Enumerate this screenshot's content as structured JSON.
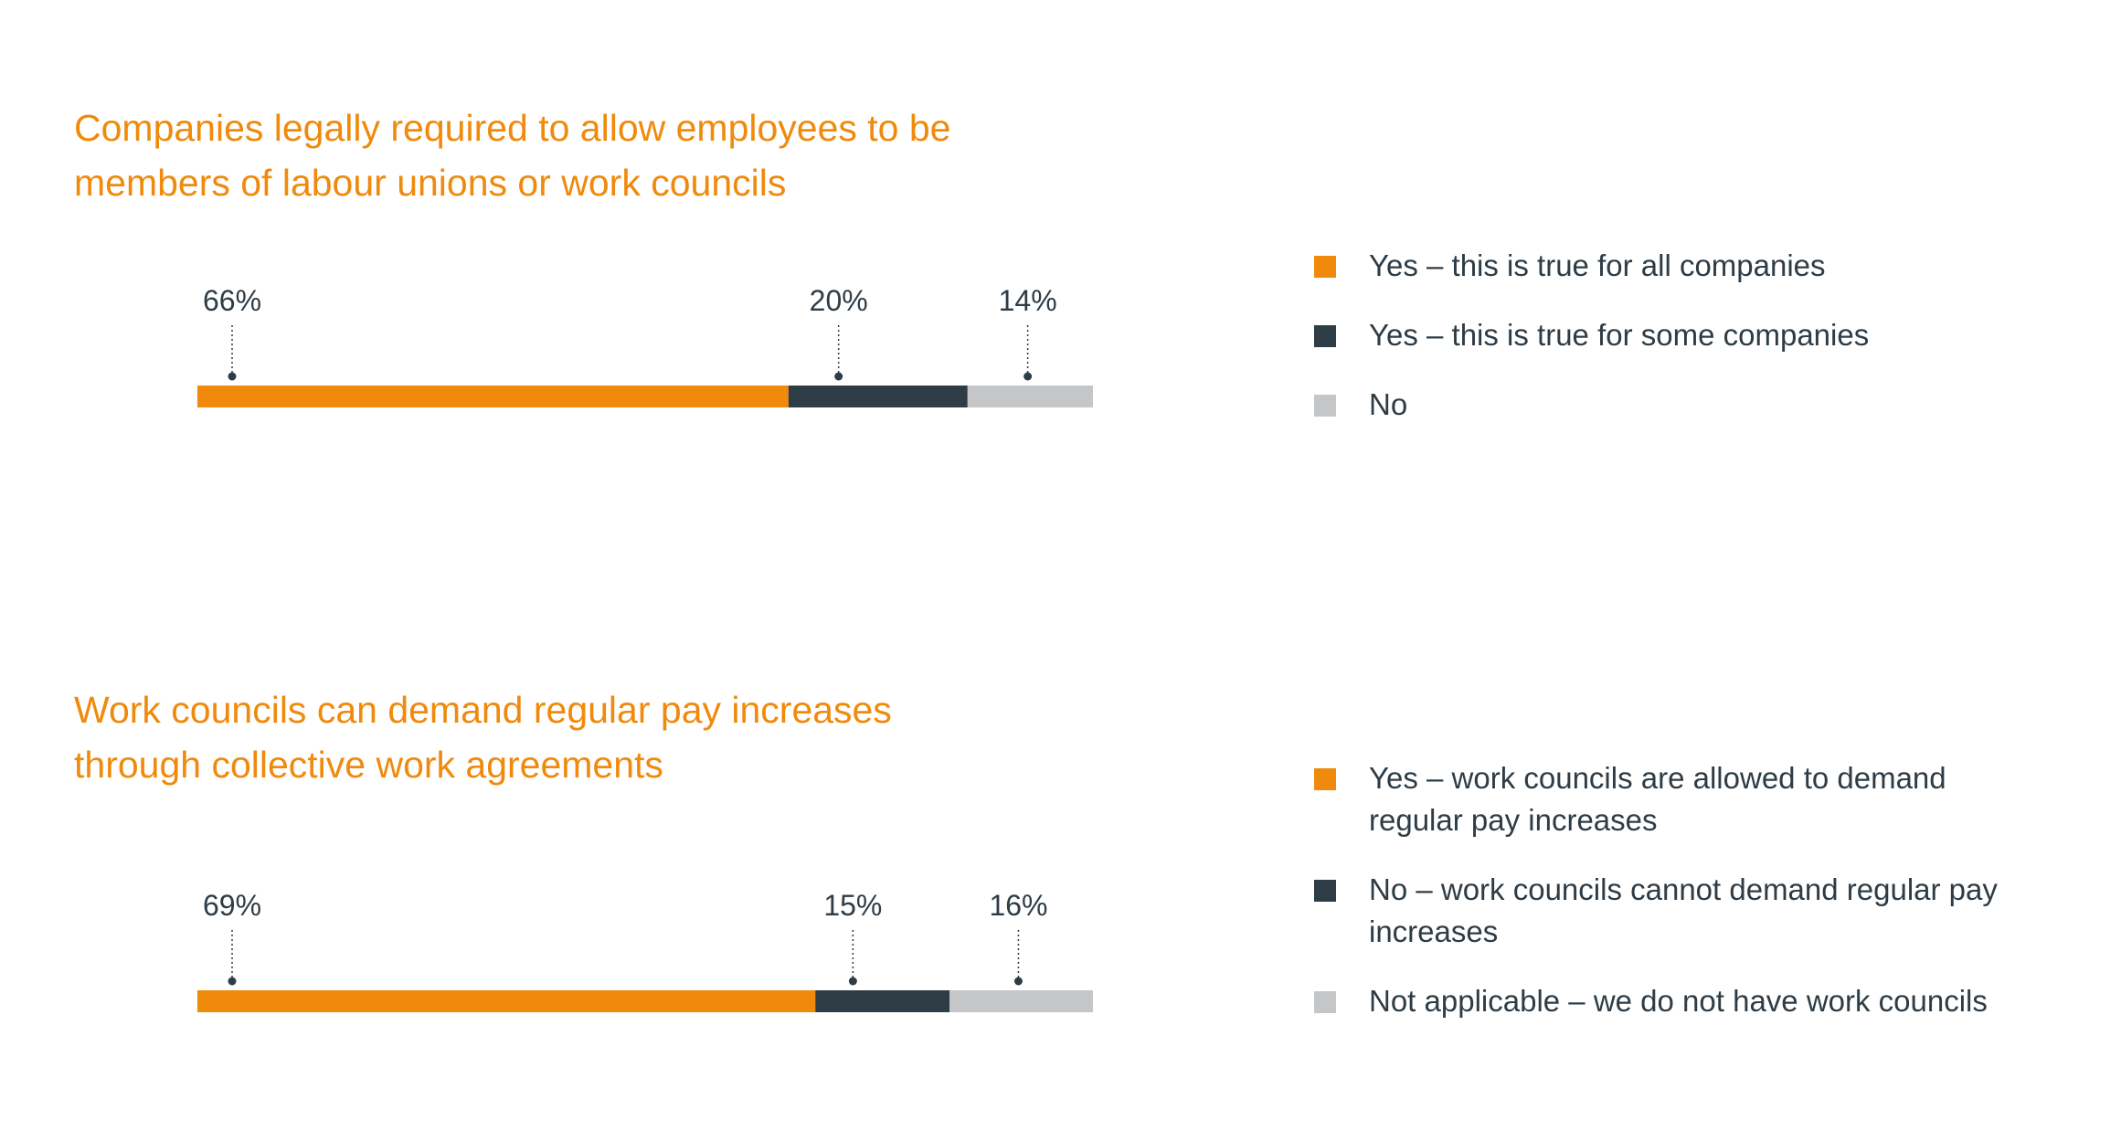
{
  "colors": {
    "title": "#f08a0c",
    "text": "#2e3c46",
    "dot": "#2e3c46"
  },
  "chart_data": [
    {
      "type": "bar",
      "orientation": "horizontal-stacked",
      "title": "Companies legally required to allow employees to be members of labour unions or work councils",
      "series": [
        {
          "name": "Yes – this is true for all companies",
          "value": 66,
          "label": "66%",
          "color": "#f08a0c"
        },
        {
          "name": "Yes – this is true for some companies",
          "value": 20,
          "label": "20%",
          "color": "#2e3c46"
        },
        {
          "name": "No",
          "value": 14,
          "label": "14%",
          "color": "#c4c6c8"
        }
      ],
      "unit": "%",
      "xlim": [
        0,
        100
      ],
      "grid": false,
      "legend_position": "right"
    },
    {
      "type": "bar",
      "orientation": "horizontal-stacked",
      "title": "Work councils can demand regular pay increases through collective work agreements",
      "series": [
        {
          "name": "Yes – work councils are allowed to demand regular pay increases",
          "value": 69,
          "label": "69%",
          "color": "#f08a0c"
        },
        {
          "name": "No – work councils cannot demand regular pay increases",
          "value": 15,
          "label": "15%",
          "color": "#2e3c46"
        },
        {
          "name": "Not applicable – we do not have work councils",
          "value": 16,
          "label": "16%",
          "color": "#c4c6c8"
        }
      ],
      "unit": "%",
      "xlim": [
        0,
        100
      ],
      "grid": false,
      "legend_position": "right"
    }
  ]
}
